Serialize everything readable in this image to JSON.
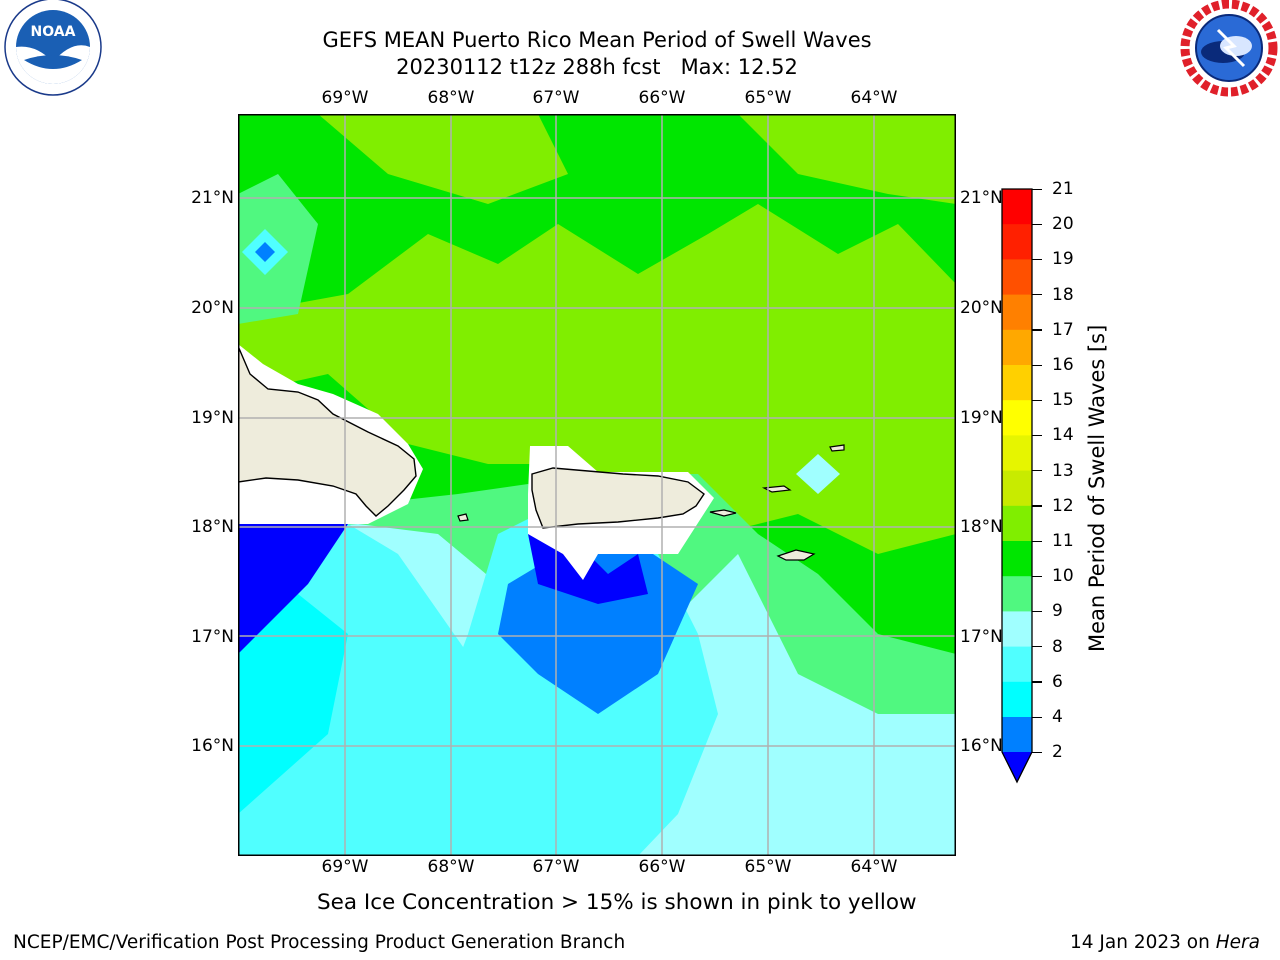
{
  "header": {
    "title_line1": "GEFS MEAN Puerto Rico Mean Period of Swell Waves",
    "title_line2": "20230112 t12z 288h fcst   Max: 12.52"
  },
  "logos": {
    "left": {
      "name": "NOAA",
      "ring_text": "NATIONAL OCEANIC AND ATMOSPHERIC ADMINISTRATION · U.S. DEPARTMENT OF COMMERCE"
    },
    "right": {
      "name": "NATIONAL WEATHER SERVICE"
    }
  },
  "map": {
    "lon_labels": [
      "69°W",
      "68°W",
      "67°W",
      "66°W",
      "65°W",
      "64°W"
    ],
    "lat_labels": [
      "21°N",
      "20°N",
      "19°N",
      "18°N",
      "17°N",
      "16°N"
    ],
    "land_color": "#eeecdc",
    "grid_color": "#b0b0b0"
  },
  "colorbar": {
    "title": "Mean Period of Swell Waves [s]",
    "ticks": [
      "21",
      "20",
      "19",
      "18",
      "17",
      "16",
      "15",
      "14",
      "13",
      "12",
      "11",
      "10",
      "9",
      "8",
      "6",
      "4",
      "2"
    ],
    "extend_color": "#0000ff",
    "bands_top_to_bottom": [
      "#ff0000",
      "#ff2000",
      "#ff5000",
      "#ff8000",
      "#ffa800",
      "#ffd000",
      "#ffff00",
      "#e6f500",
      "#c8eb00",
      "#80ee00",
      "#00e600",
      "#50f880",
      "#a0ffff",
      "#50ffff",
      "#00ffff",
      "#0080ff"
    ]
  },
  "note": "Sea Ice Concentration > 15% is shown in pink to yellow",
  "footer": {
    "left": "NCEP/EMC/Verification Post Processing Product Generation Branch",
    "date": "14 Jan 2023 on",
    "host": "Hera"
  }
}
